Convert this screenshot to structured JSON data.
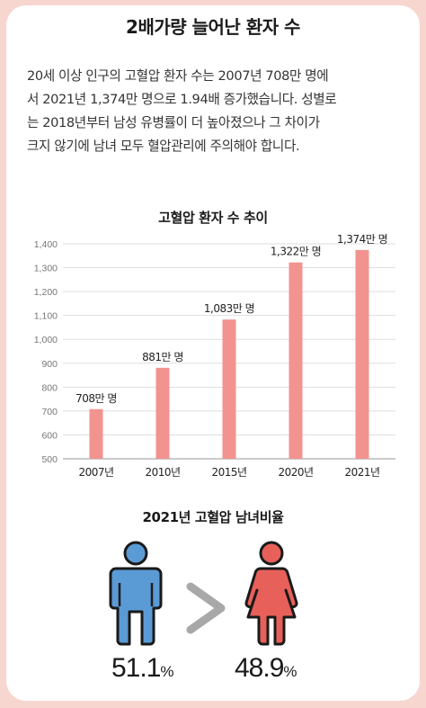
{
  "heading": "2배가량 늘어난 환자 수",
  "description_lines": [
    "20세 이상 인구의 고혈압 환자 수는 2007년 708만 명에",
    "서 2021년 1,374만 명으로 1.94배 증가했습니다. 성별로",
    "는 2018년부터 남성 유병률이 더 높아졌으나 그 차이가",
    "크지 않기에 남녀 모두 혈압관리에 주의해야 합니다."
  ],
  "chart_data": {
    "type": "bar",
    "title": "고혈압 환자 수 추이",
    "categories": [
      "2007년",
      "2010년",
      "2015년",
      "2020년",
      "2021년"
    ],
    "values": [
      708,
      881,
      1083,
      1322,
      1374
    ],
    "data_labels": [
      "708만 명",
      "881만 명",
      "1,083만 명",
      "1,322만 명",
      "1,374만 명"
    ],
    "y_ticks": [
      "500",
      "600",
      "700",
      "800",
      "900",
      "1,000",
      "1,100",
      "1,200",
      "1,300",
      "1,400"
    ],
    "ylim": [
      500,
      1400
    ],
    "grid": true,
    "bar_color": "#f2938f"
  },
  "gender_ratio": {
    "title": "2021년 고혈압 남녀비율",
    "male": {
      "value": "51.1",
      "unit": "%",
      "color": "#5b9bd5",
      "icon": "male-person-icon"
    },
    "female": {
      "value": "48.9",
      "unit": "%",
      "color": "#e8605a",
      "icon": "female-person-icon"
    },
    "comparison_icon": "greater-than-chevron-icon"
  }
}
